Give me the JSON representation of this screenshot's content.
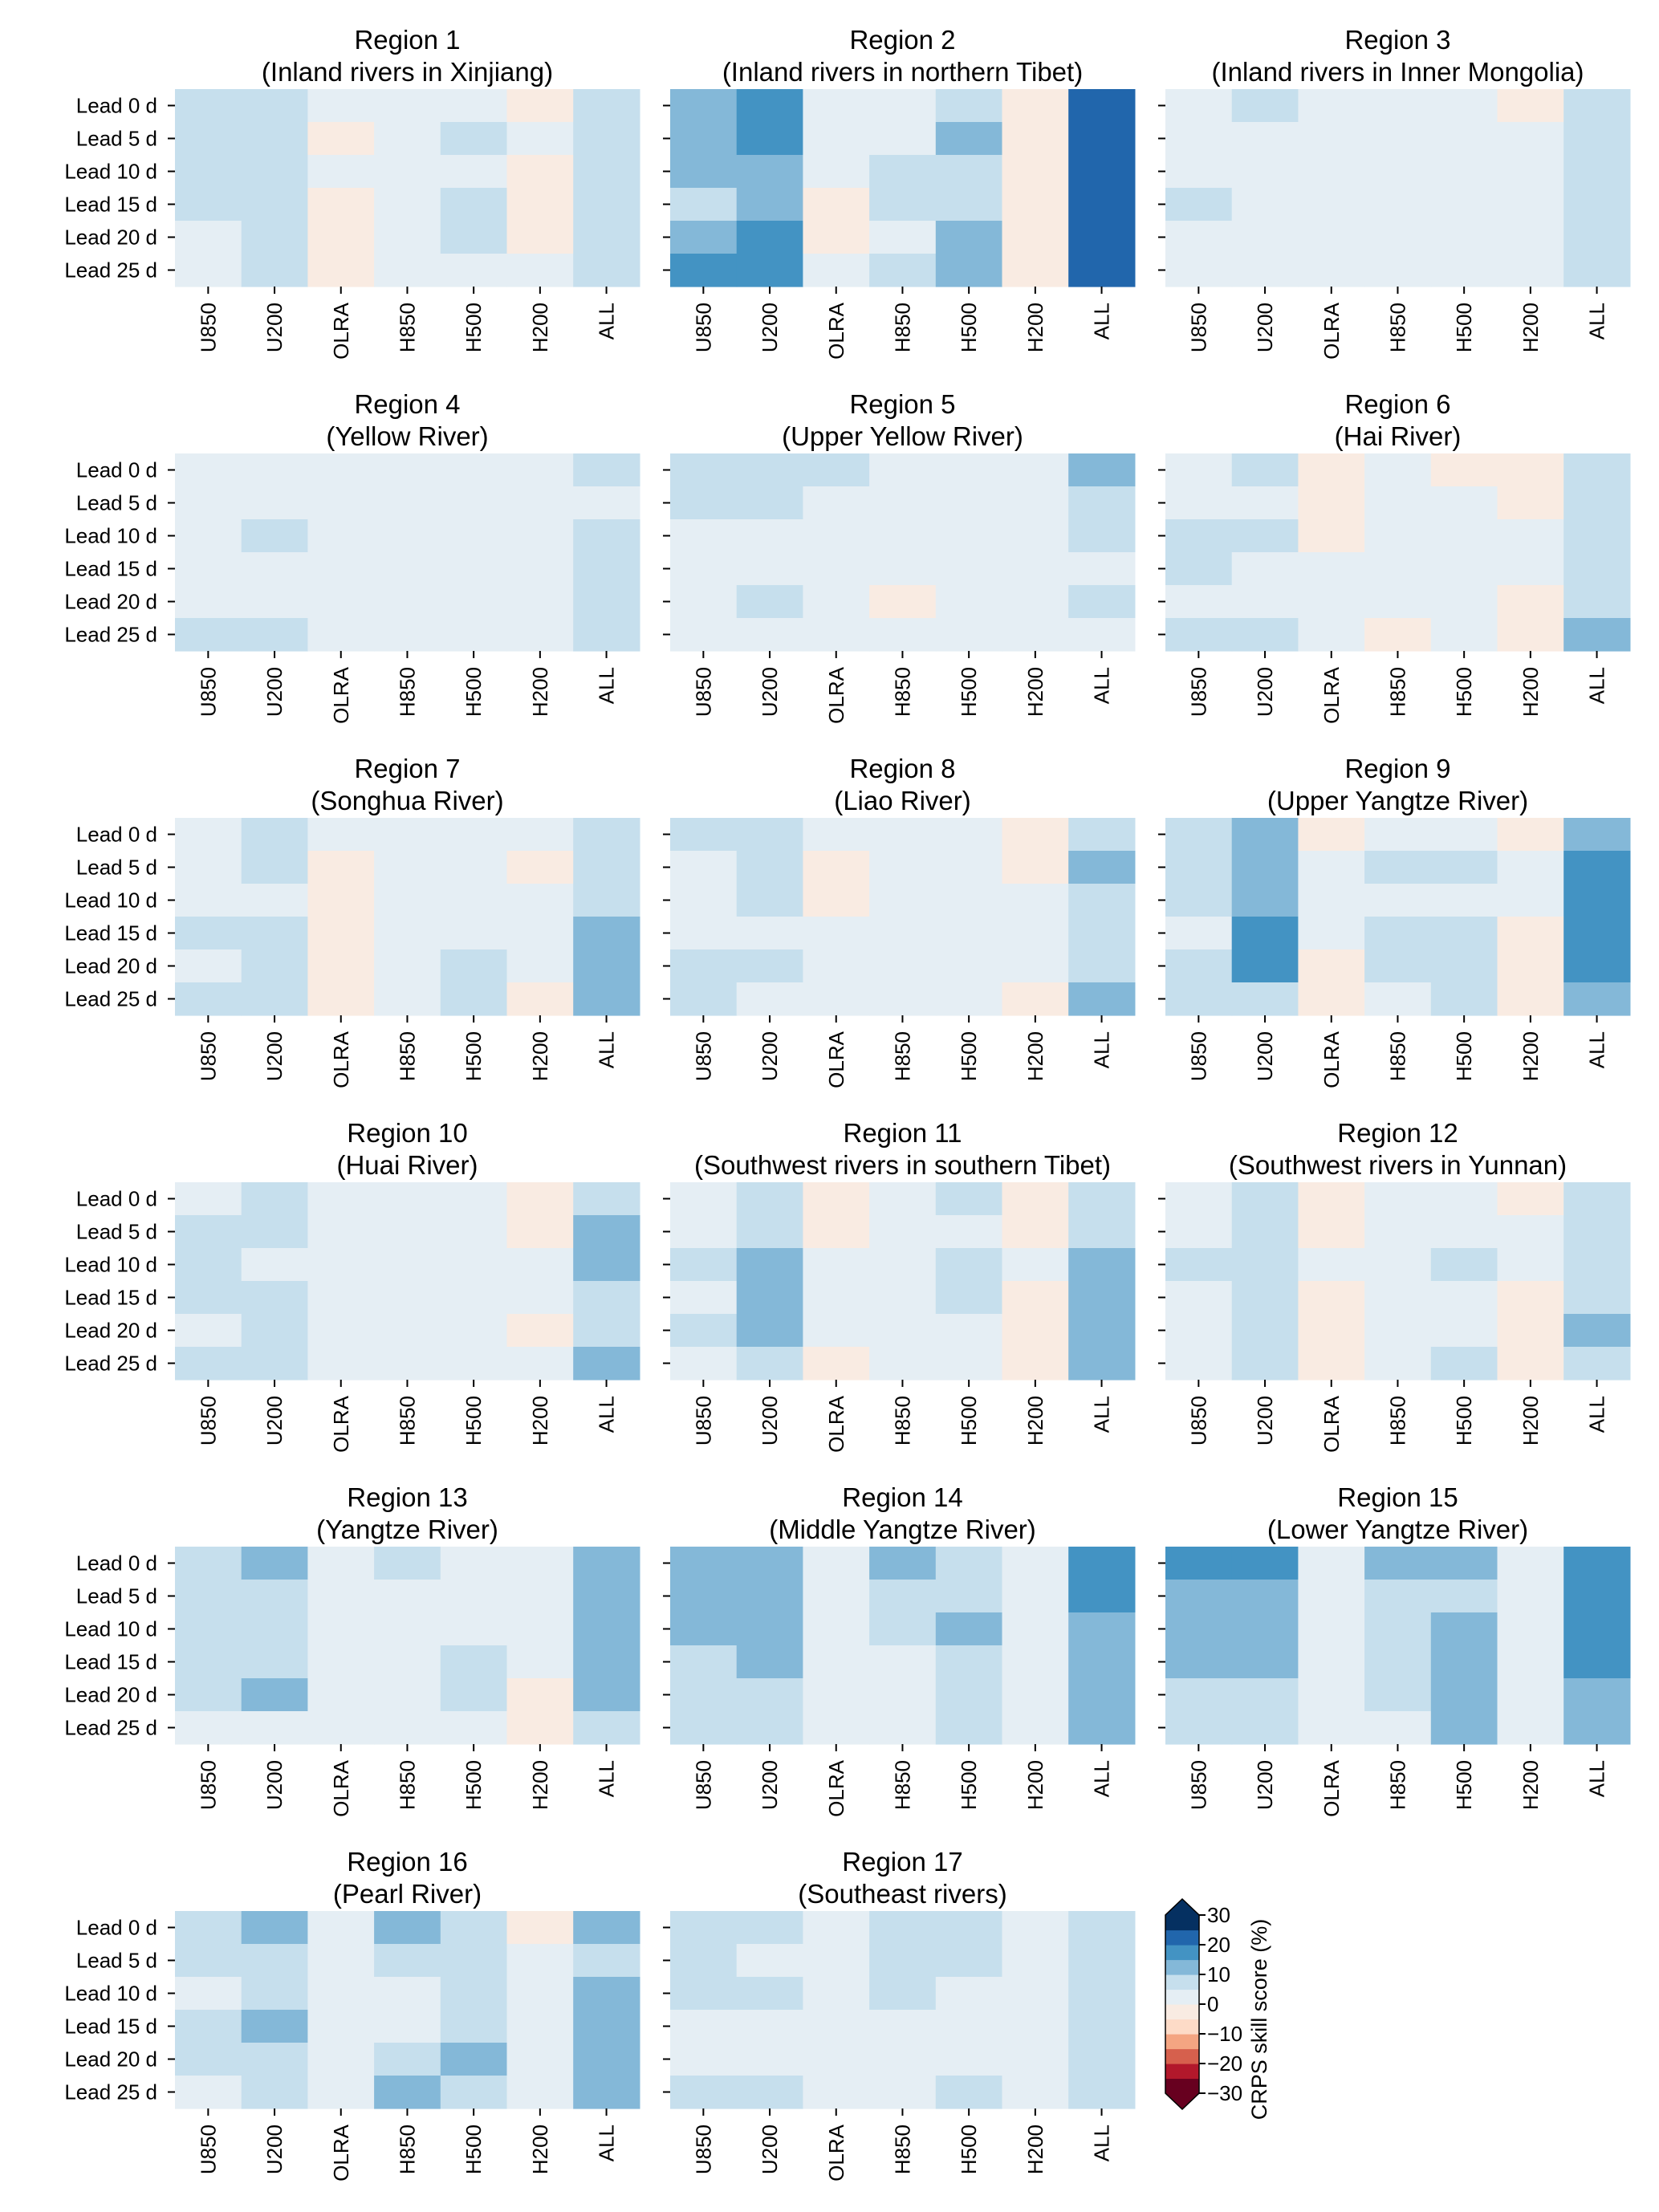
{
  "figure": {
    "colorbar_label": "CRPS skill score (%)"
  },
  "chart_data": {
    "type": "heatmap",
    "rows": [
      "Lead 0 d",
      "Lead 5 d",
      "Lead 10 d",
      "Lead 15 d",
      "Lead 20 d",
      "Lead 25 d"
    ],
    "columns": [
      "U850",
      "U200",
      "OLRA",
      "H850",
      "H500",
      "H200",
      "ALL"
    ],
    "colorbar": {
      "label": "CRPS skill score (%)",
      "min": -30,
      "max": 30,
      "extend": "both",
      "bounds": [
        -30,
        -25,
        -20,
        -15,
        -10,
        -5,
        0,
        5,
        10,
        15,
        20,
        25,
        30
      ],
      "tick_values": [
        30,
        20,
        10,
        0,
        -10,
        -20,
        -30
      ],
      "tick_labels": [
        "30",
        "20",
        "10",
        "0",
        "−10",
        "−20",
        "−30"
      ],
      "colors": [
        "#67001f",
        "#b2182b",
        "#d6604d",
        "#f4a582",
        "#fddbc7",
        "#f9ebe2",
        "#e5eef4",
        "#c6dfed",
        "#84b8d8",
        "#4393c3",
        "#2166ac",
        "#053061"
      ]
    },
    "panels": [
      {
        "title": "Region 1",
        "subtitle": "(Inland rivers in Xinjiang)",
        "values": [
          [
            7,
            7,
            2,
            2,
            2,
            -2,
            7
          ],
          [
            7,
            7,
            -2,
            2,
            7,
            2,
            7
          ],
          [
            7,
            7,
            2,
            2,
            2,
            -2,
            7
          ],
          [
            7,
            7,
            -2,
            2,
            7,
            -2,
            7
          ],
          [
            2,
            7,
            -2,
            2,
            7,
            -2,
            7
          ],
          [
            2,
            7,
            -2,
            2,
            2,
            2,
            7
          ]
        ]
      },
      {
        "title": "Region 2",
        "subtitle": "(Inland rivers in northern Tibet)",
        "values": [
          [
            12,
            17,
            2,
            2,
            7,
            -2,
            22
          ],
          [
            12,
            17,
            2,
            2,
            12,
            -2,
            22
          ],
          [
            12,
            12,
            2,
            7,
            7,
            -2,
            22
          ],
          [
            7,
            12,
            -2,
            7,
            7,
            -2,
            22
          ],
          [
            12,
            17,
            -2,
            2,
            12,
            -2,
            22
          ],
          [
            17,
            17,
            2,
            7,
            12,
            -2,
            22
          ]
        ]
      },
      {
        "title": "Region 3",
        "subtitle": "(Inland rivers in Inner Mongolia)",
        "values": [
          [
            2,
            7,
            2,
            2,
            2,
            -2,
            7
          ],
          [
            2,
            2,
            2,
            2,
            2,
            2,
            7
          ],
          [
            2,
            2,
            2,
            2,
            2,
            2,
            7
          ],
          [
            7,
            2,
            2,
            2,
            2,
            2,
            7
          ],
          [
            2,
            2,
            2,
            2,
            2,
            2,
            7
          ],
          [
            2,
            2,
            2,
            2,
            2,
            2,
            7
          ]
        ]
      },
      {
        "title": "Region 4",
        "subtitle": "(Yellow River)",
        "values": [
          [
            2,
            2,
            2,
            2,
            2,
            2,
            7
          ],
          [
            2,
            2,
            2,
            2,
            2,
            2,
            2
          ],
          [
            2,
            7,
            2,
            2,
            2,
            2,
            7
          ],
          [
            2,
            2,
            2,
            2,
            2,
            2,
            7
          ],
          [
            2,
            2,
            2,
            2,
            2,
            2,
            7
          ],
          [
            7,
            7,
            2,
            2,
            2,
            2,
            7
          ]
        ]
      },
      {
        "title": "Region 5",
        "subtitle": "(Upper Yellow River)",
        "values": [
          [
            7,
            7,
            7,
            2,
            2,
            2,
            12
          ],
          [
            7,
            7,
            2,
            2,
            2,
            2,
            7
          ],
          [
            2,
            2,
            2,
            2,
            2,
            2,
            7
          ],
          [
            2,
            2,
            2,
            2,
            2,
            2,
            2
          ],
          [
            2,
            7,
            2,
            -2,
            2,
            2,
            7
          ],
          [
            2,
            2,
            2,
            2,
            2,
            2,
            2
          ]
        ]
      },
      {
        "title": "Region 6",
        "subtitle": "(Hai River)",
        "values": [
          [
            2,
            7,
            -2,
            2,
            -2,
            -2,
            7
          ],
          [
            2,
            2,
            -2,
            2,
            2,
            -2,
            7
          ],
          [
            7,
            7,
            -2,
            2,
            2,
            2,
            7
          ],
          [
            7,
            2,
            2,
            2,
            2,
            2,
            7
          ],
          [
            2,
            2,
            2,
            2,
            2,
            -2,
            7
          ],
          [
            7,
            7,
            2,
            -2,
            2,
            -2,
            12
          ]
        ]
      },
      {
        "title": "Region 7",
        "subtitle": "(Songhua River)",
        "values": [
          [
            2,
            7,
            2,
            2,
            2,
            2,
            7
          ],
          [
            2,
            7,
            -2,
            2,
            2,
            -2,
            7
          ],
          [
            2,
            2,
            -2,
            2,
            2,
            2,
            7
          ],
          [
            7,
            7,
            -2,
            2,
            2,
            2,
            12
          ],
          [
            2,
            7,
            -2,
            2,
            7,
            2,
            12
          ],
          [
            7,
            7,
            -2,
            2,
            7,
            -2,
            12
          ]
        ]
      },
      {
        "title": "Region 8",
        "subtitle": "(Liao River)",
        "values": [
          [
            7,
            7,
            2,
            2,
            2,
            -2,
            7
          ],
          [
            2,
            7,
            -2,
            2,
            2,
            -2,
            12
          ],
          [
            2,
            7,
            -2,
            2,
            2,
            2,
            7
          ],
          [
            2,
            2,
            2,
            2,
            2,
            2,
            7
          ],
          [
            7,
            7,
            2,
            2,
            2,
            2,
            7
          ],
          [
            7,
            2,
            2,
            2,
            2,
            -2,
            12
          ]
        ]
      },
      {
        "title": "Region 9",
        "subtitle": "(Upper Yangtze River)",
        "values": [
          [
            7,
            12,
            -2,
            2,
            2,
            -2,
            12
          ],
          [
            7,
            12,
            2,
            7,
            7,
            2,
            17
          ],
          [
            7,
            12,
            2,
            2,
            2,
            2,
            17
          ],
          [
            2,
            17,
            2,
            7,
            7,
            -2,
            17
          ],
          [
            7,
            17,
            -2,
            7,
            7,
            -2,
            17
          ],
          [
            7,
            7,
            -2,
            2,
            7,
            -2,
            12
          ]
        ]
      },
      {
        "title": "Region 10",
        "subtitle": "(Huai River)",
        "values": [
          [
            2,
            7,
            2,
            2,
            2,
            -2,
            7
          ],
          [
            7,
            7,
            2,
            2,
            2,
            -2,
            12
          ],
          [
            7,
            2,
            2,
            2,
            2,
            2,
            12
          ],
          [
            7,
            7,
            2,
            2,
            2,
            2,
            7
          ],
          [
            2,
            7,
            2,
            2,
            2,
            -2,
            7
          ],
          [
            7,
            7,
            2,
            2,
            2,
            2,
            12
          ]
        ]
      },
      {
        "title": "Region 11",
        "subtitle": "(Southwest rivers in southern Tibet)",
        "values": [
          [
            2,
            7,
            -2,
            2,
            7,
            -2,
            7
          ],
          [
            2,
            7,
            -2,
            2,
            2,
            -2,
            7
          ],
          [
            7,
            12,
            2,
            2,
            7,
            2,
            12
          ],
          [
            2,
            12,
            2,
            2,
            7,
            -2,
            12
          ],
          [
            7,
            12,
            2,
            2,
            2,
            -2,
            12
          ],
          [
            2,
            7,
            -2,
            2,
            2,
            -2,
            12
          ]
        ]
      },
      {
        "title": "Region 12",
        "subtitle": "(Southwest rivers in Yunnan)",
        "values": [
          [
            2,
            7,
            -2,
            2,
            2,
            -2,
            7
          ],
          [
            2,
            7,
            -2,
            2,
            2,
            2,
            7
          ],
          [
            7,
            7,
            2,
            2,
            7,
            2,
            7
          ],
          [
            2,
            7,
            -2,
            2,
            2,
            -2,
            7
          ],
          [
            2,
            7,
            -2,
            2,
            2,
            -2,
            12
          ],
          [
            2,
            7,
            -2,
            2,
            7,
            -2,
            7
          ]
        ]
      },
      {
        "title": "Region 13",
        "subtitle": "(Yangtze River)",
        "values": [
          [
            7,
            12,
            2,
            7,
            2,
            2,
            12
          ],
          [
            7,
            7,
            2,
            2,
            2,
            2,
            12
          ],
          [
            7,
            7,
            2,
            2,
            2,
            2,
            12
          ],
          [
            7,
            7,
            2,
            2,
            7,
            2,
            12
          ],
          [
            7,
            12,
            2,
            2,
            7,
            -2,
            12
          ],
          [
            2,
            2,
            2,
            2,
            2,
            -2,
            7
          ]
        ]
      },
      {
        "title": "Region 14",
        "subtitle": "(Middle Yangtze River)",
        "values": [
          [
            12,
            12,
            2,
            12,
            7,
            2,
            17
          ],
          [
            12,
            12,
            2,
            7,
            7,
            2,
            17
          ],
          [
            12,
            12,
            2,
            7,
            12,
            2,
            12
          ],
          [
            7,
            12,
            2,
            2,
            7,
            2,
            12
          ],
          [
            7,
            7,
            2,
            2,
            7,
            2,
            12
          ],
          [
            7,
            7,
            2,
            2,
            7,
            2,
            12
          ]
        ]
      },
      {
        "title": "Region 15",
        "subtitle": "(Lower Yangtze River)",
        "values": [
          [
            17,
            17,
            2,
            12,
            12,
            2,
            17
          ],
          [
            12,
            12,
            2,
            7,
            7,
            2,
            17
          ],
          [
            12,
            12,
            2,
            7,
            12,
            2,
            17
          ],
          [
            12,
            12,
            2,
            7,
            12,
            2,
            17
          ],
          [
            7,
            7,
            2,
            7,
            12,
            2,
            12
          ],
          [
            7,
            7,
            2,
            2,
            12,
            2,
            12
          ]
        ]
      },
      {
        "title": "Region 16",
        "subtitle": "(Pearl River)",
        "values": [
          [
            7,
            12,
            2,
            12,
            7,
            -2,
            12
          ],
          [
            7,
            7,
            2,
            7,
            7,
            2,
            7
          ],
          [
            2,
            7,
            2,
            2,
            7,
            2,
            12
          ],
          [
            7,
            12,
            2,
            2,
            7,
            2,
            12
          ],
          [
            7,
            7,
            2,
            7,
            12,
            2,
            12
          ],
          [
            2,
            7,
            2,
            12,
            7,
            2,
            12
          ]
        ]
      },
      {
        "title": "Region 17",
        "subtitle": "(Southeast rivers)",
        "values": [
          [
            7,
            7,
            2,
            7,
            7,
            2,
            7
          ],
          [
            7,
            2,
            2,
            7,
            7,
            2,
            7
          ],
          [
            7,
            7,
            2,
            7,
            2,
            2,
            7
          ],
          [
            2,
            2,
            2,
            2,
            2,
            2,
            7
          ],
          [
            2,
            2,
            2,
            2,
            2,
            2,
            7
          ],
          [
            7,
            7,
            2,
            2,
            7,
            2,
            7
          ]
        ]
      }
    ]
  }
}
